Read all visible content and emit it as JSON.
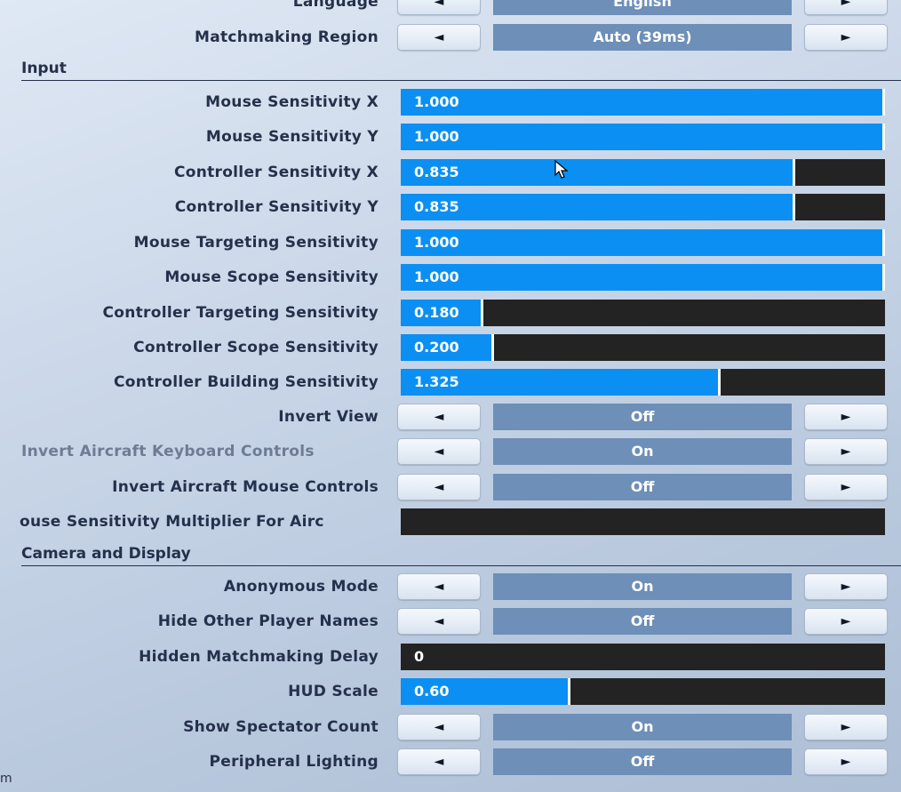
{
  "rows_top": [
    {
      "label": "Language",
      "value": "English"
    },
    {
      "label": "Matchmaking Region",
      "value": "Auto (39ms)"
    }
  ],
  "sections": {
    "input": "Input",
    "camera": "Camera and Display"
  },
  "input_sliders": [
    {
      "label": "Mouse Sensitivity X",
      "value": "1.000",
      "fill": 1.0
    },
    {
      "label": "Mouse Sensitivity Y",
      "value": "1.000",
      "fill": 1.0
    },
    {
      "label": "Controller Sensitivity X",
      "value": "0.835",
      "fill": 0.815
    },
    {
      "label": "Controller Sensitivity Y",
      "value": "0.835",
      "fill": 0.815
    },
    {
      "label": "Mouse Targeting Sensitivity",
      "value": "1.000",
      "fill": 1.0
    },
    {
      "label": "Mouse Scope Sensitivity",
      "value": "1.000",
      "fill": 1.0
    },
    {
      "label": "Controller Targeting Sensitivity",
      "value": "0.180",
      "fill": 0.17
    },
    {
      "label": "Controller Scope Sensitivity",
      "value": "0.200",
      "fill": 0.193
    },
    {
      "label": "Controller Building Sensitivity",
      "value": "1.325",
      "fill": 0.66
    }
  ],
  "input_toggles": [
    {
      "label": "Invert View",
      "value": "Off"
    },
    {
      "label": "Invert Aircraft Keyboard Controls",
      "value": "On"
    },
    {
      "label": "Invert Aircraft Mouse Controls",
      "value": "Off"
    }
  ],
  "aircraft_multiplier": {
    "label": "ouse Sensitivity Multiplier For Airc"
  },
  "camera_toggles": [
    {
      "label": "Anonymous Mode",
      "value": "On"
    },
    {
      "label": "Hide Other Player Names",
      "value": "Off"
    }
  ],
  "hidden_delay": {
    "label": "Hidden Matchmaking Delay",
    "value": "0"
  },
  "hud_scale": {
    "label": "HUD Scale",
    "value": "0.60",
    "fill": 0.35
  },
  "camera_toggles_bottom": [
    {
      "label": "Show Spectator Count",
      "value": "On"
    },
    {
      "label": "Peripheral Lighting",
      "value": "Off"
    }
  ],
  "arrows": {
    "left": "◄",
    "right": "►"
  },
  "corner_text": "m",
  "colors": {
    "slider_fill": "#0b8ff2",
    "slider_track": "#232323",
    "value_box": "#6d8fb8"
  }
}
